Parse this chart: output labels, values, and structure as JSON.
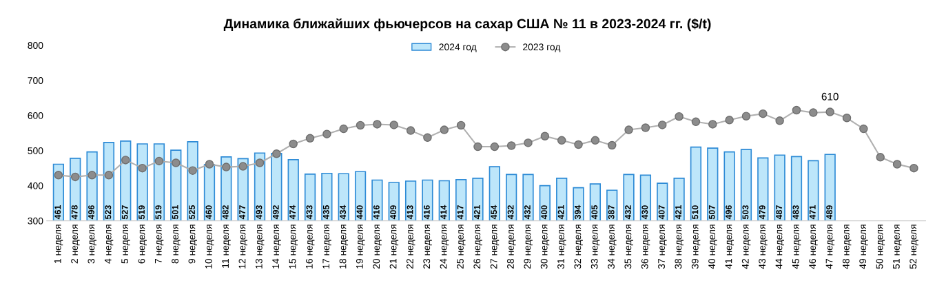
{
  "chart_data": {
    "type": "bar",
    "title": "Динамика ближайших фьючерсов на сахар США № 11 в 2023-2024 гг. ($/t)",
    "categories": [
      "1 неделя",
      "2 неделя",
      "3 неделя",
      "4 неделя",
      "5 неделя",
      "6 неделя",
      "7 неделя",
      "8 неделя",
      "9 неделя",
      "10 неделя",
      "11 неделя",
      "12 неделя",
      "13 неделя",
      "14 неделя",
      "15 неделя",
      "16 неделя",
      "17 неделя",
      "18 неделя",
      "19 неделя",
      "20 неделя",
      "21 неделя",
      "22 неделя",
      "23 неделя",
      "24 неделя",
      "25 неделя",
      "26 неделя",
      "27 неделя",
      "28 неделя",
      "29 неделя",
      "30 неделя",
      "31 неделя",
      "32 неделя",
      "33 неделя",
      "34 неделя",
      "35 неделя",
      "36 неделя",
      "37 неделя",
      "38 неделя",
      "39 неделя",
      "40 неделя",
      "41 неделя",
      "42 неделя",
      "43 неделя",
      "44 неделя",
      "45 неделя",
      "46 неделя",
      "47 неделя",
      "48 неделя",
      "49 неделя",
      "50 неделя",
      "51 неделя",
      "52 неделя"
    ],
    "series": [
      {
        "name": "2024 год",
        "color": "#bde6fa",
        "values": [
          461,
          478,
          496,
          523,
          527,
          519,
          519,
          501,
          525,
          460,
          482,
          477,
          493,
          492,
          474,
          433,
          435,
          434,
          440,
          416,
          409,
          413,
          416,
          414,
          417,
          421,
          454,
          432,
          432,
          400,
          421,
          394,
          405,
          387,
          432,
          430,
          407,
          421,
          510,
          507,
          496,
          503,
          479,
          487,
          483,
          471,
          489,
          null,
          null,
          null,
          null,
          null
        ],
        "value_labels": [
          "461",
          "478",
          "496",
          "523",
          "527",
          "519",
          "519",
          "501",
          "525",
          "460",
          "482",
          "477",
          "493",
          "492",
          "474",
          "433",
          "435",
          "434",
          "440",
          "416",
          "409",
          "413",
          "416",
          "414",
          "417",
          "421",
          "454",
          "432",
          "432",
          "400",
          "421",
          "394",
          "405",
          "387",
          "432",
          "430",
          "407",
          "421",
          "510",
          "507",
          "496",
          "503",
          "479",
          "487",
          "483",
          "471",
          "489",
          null,
          null,
          null,
          null,
          null
        ]
      },
      {
        "name": "2023 год",
        "type": "line",
        "color": "#8c8c8c",
        "values": [
          430,
          425,
          430,
          430,
          473,
          450,
          470,
          465,
          443,
          461,
          453,
          455,
          465,
          491,
          519,
          535,
          547,
          562,
          572,
          575,
          573,
          557,
          537,
          559,
          572,
          511,
          511,
          514,
          522,
          541,
          529,
          517,
          529,
          515,
          559,
          565,
          573,
          597,
          582,
          575,
          587,
          598,
          605,
          585,
          615,
          608,
          610,
          593,
          562,
          481,
          461,
          450
        ],
        "value_labels": [
          null,
          null,
          null,
          null,
          null,
          null,
          null,
          null,
          null,
          null,
          null,
          null,
          null,
          null,
          null,
          null,
          null,
          null,
          null,
          null,
          null,
          null,
          null,
          null,
          null,
          null,
          null,
          null,
          null,
          null,
          null,
          null,
          null,
          null,
          null,
          null,
          null,
          null,
          null,
          null,
          null,
          null,
          null,
          null,
          null,
          null,
          "610",
          null,
          null,
          null,
          null,
          null
        ]
      }
    ],
    "ylim": [
      300,
      800
    ],
    "yticks": [
      300,
      400,
      500,
      600,
      700,
      800
    ],
    "grid": false,
    "legend": "top",
    "marker": "circle",
    "line_style": "solid"
  }
}
